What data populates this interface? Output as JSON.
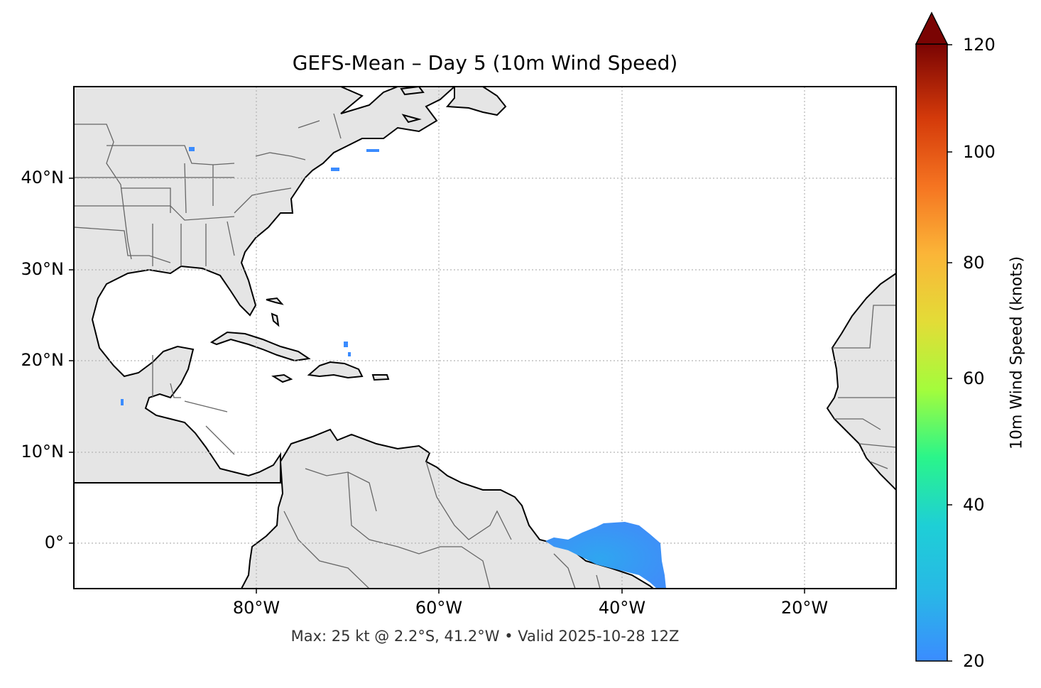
{
  "title": "GEFS-Mean – Day 5 (10m Wind Speed)",
  "footer": "Max: 25 kt @ 2.2°S, 41.2°W • Valid 2025-10-28 12Z",
  "map": {
    "projection": "PlateCarree",
    "extent_lon": [
      -100,
      -10
    ],
    "extent_lat": [
      -5,
      50
    ],
    "land_color": "#e5e5e5",
    "ocean_color": "#ffffff",
    "gridlines": "dotted",
    "lat_ticks": [
      "40°N",
      "30°N",
      "20°N",
      "10°N",
      "0°"
    ],
    "lon_ticks": [
      "80°W",
      "60°W",
      "40°W",
      "20°W"
    ]
  },
  "colorbar": {
    "label": "10m Wind Speed (knots)",
    "ticks": [
      "120",
      "100",
      "80",
      "60",
      "40",
      "20"
    ],
    "range": [
      20,
      120
    ],
    "extend": "max",
    "colormap": "turbo",
    "colors": [
      "#3b8cff",
      "#1ecfd6",
      "#2af58a",
      "#a4fc3c",
      "#e3dc37",
      "#fbb538",
      "#f57421",
      "#d43a0a",
      "#a11202",
      "#7a0403"
    ]
  },
  "wind_features": [
    {
      "name": "equatorial-atlantic-wind-patch",
      "max_kt": 25,
      "lat": -2.2,
      "lon": -41.2,
      "color": "#3a90f2"
    }
  ]
}
